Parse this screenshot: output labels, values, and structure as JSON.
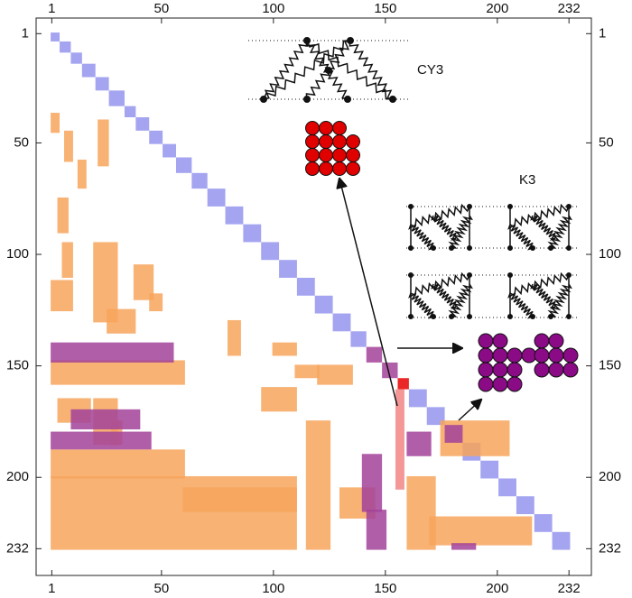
{
  "chart_data": {
    "type": "matrix",
    "xlim": [
      -6,
      242
    ],
    "ylim": [
      -6,
      244
    ],
    "xticks": [
      1,
      50,
      100,
      150,
      200,
      232
    ],
    "yticks": [
      1,
      50,
      100,
      150,
      200,
      232
    ],
    "annotations": [
      "CY3",
      "K3"
    ],
    "diagonal": {
      "color": "#9a9af0",
      "blocks": [
        [
          1,
          4
        ],
        [
          5,
          9
        ],
        [
          10,
          14
        ],
        [
          15,
          20
        ],
        [
          21,
          26
        ],
        [
          27,
          33
        ],
        [
          34,
          38
        ],
        [
          39,
          44
        ],
        [
          45,
          50
        ],
        [
          51,
          56
        ],
        [
          57,
          63
        ],
        [
          64,
          70
        ],
        [
          71,
          78
        ],
        [
          79,
          86
        ],
        [
          87,
          94
        ],
        [
          95,
          102
        ],
        [
          103,
          110
        ],
        [
          111,
          118
        ],
        [
          119,
          126
        ],
        [
          127,
          134
        ],
        [
          135,
          141
        ],
        [
          161,
          168
        ],
        [
          169,
          176
        ],
        [
          185,
          192
        ],
        [
          193,
          200
        ],
        [
          201,
          208
        ],
        [
          209,
          216
        ],
        [
          217,
          224
        ],
        [
          225,
          232
        ]
      ]
    },
    "regions": [
      {
        "color": "#f7a55c",
        "rects": [
          [
            1,
            4,
            37,
            45
          ],
          [
            7,
            10,
            45,
            58
          ],
          [
            13,
            16,
            58,
            70
          ],
          [
            22,
            26,
            40,
            60
          ],
          [
            4,
            8,
            75,
            90
          ],
          [
            6,
            10,
            95,
            110
          ],
          [
            1,
            10,
            112,
            125
          ],
          [
            20,
            30,
            95,
            130
          ],
          [
            26,
            38,
            125,
            135
          ],
          [
            38,
            46,
            105,
            120
          ],
          [
            45,
            50,
            118,
            125
          ],
          [
            1,
            60,
            148,
            158
          ],
          [
            4,
            18,
            165,
            175
          ],
          [
            20,
            30,
            165,
            185
          ],
          [
            28,
            32,
            175,
            185
          ],
          [
            1,
            60,
            188,
            200
          ],
          [
            1,
            110,
            200,
            232
          ],
          [
            60,
            110,
            205,
            215
          ],
          [
            95,
            110,
            160,
            170
          ],
          [
            80,
            85,
            130,
            145
          ],
          [
            100,
            110,
            140,
            145
          ],
          [
            110,
            120,
            150,
            155
          ],
          [
            115,
            125,
            175,
            232
          ],
          [
            120,
            135,
            150,
            158
          ],
          [
            130,
            145,
            205,
            218
          ],
          [
            170,
            215,
            218,
            230
          ],
          [
            175,
            205,
            175,
            190
          ],
          [
            160,
            172,
            200,
            232
          ]
        ]
      },
      {
        "color": "#a3429a",
        "rects": [
          [
            1,
            55,
            140,
            148
          ],
          [
            10,
            40,
            170,
            178
          ],
          [
            1,
            45,
            180,
            187
          ],
          [
            140,
            148,
            190,
            215
          ],
          [
            160,
            170,
            180,
            190
          ],
          [
            142,
            150,
            215,
            232
          ],
          [
            180,
            190,
            230,
            232
          ],
          [
            142,
            148,
            142,
            148
          ],
          [
            149,
            155,
            149,
            155
          ],
          [
            177,
            184,
            177,
            184
          ]
        ]
      },
      {
        "color": "#e60000",
        "rects": [
          [
            156,
            160,
            156,
            160
          ]
        ]
      },
      {
        "color": "#f28585",
        "rects": [
          [
            155,
            158,
            161,
            205
          ]
        ]
      }
    ]
  }
}
